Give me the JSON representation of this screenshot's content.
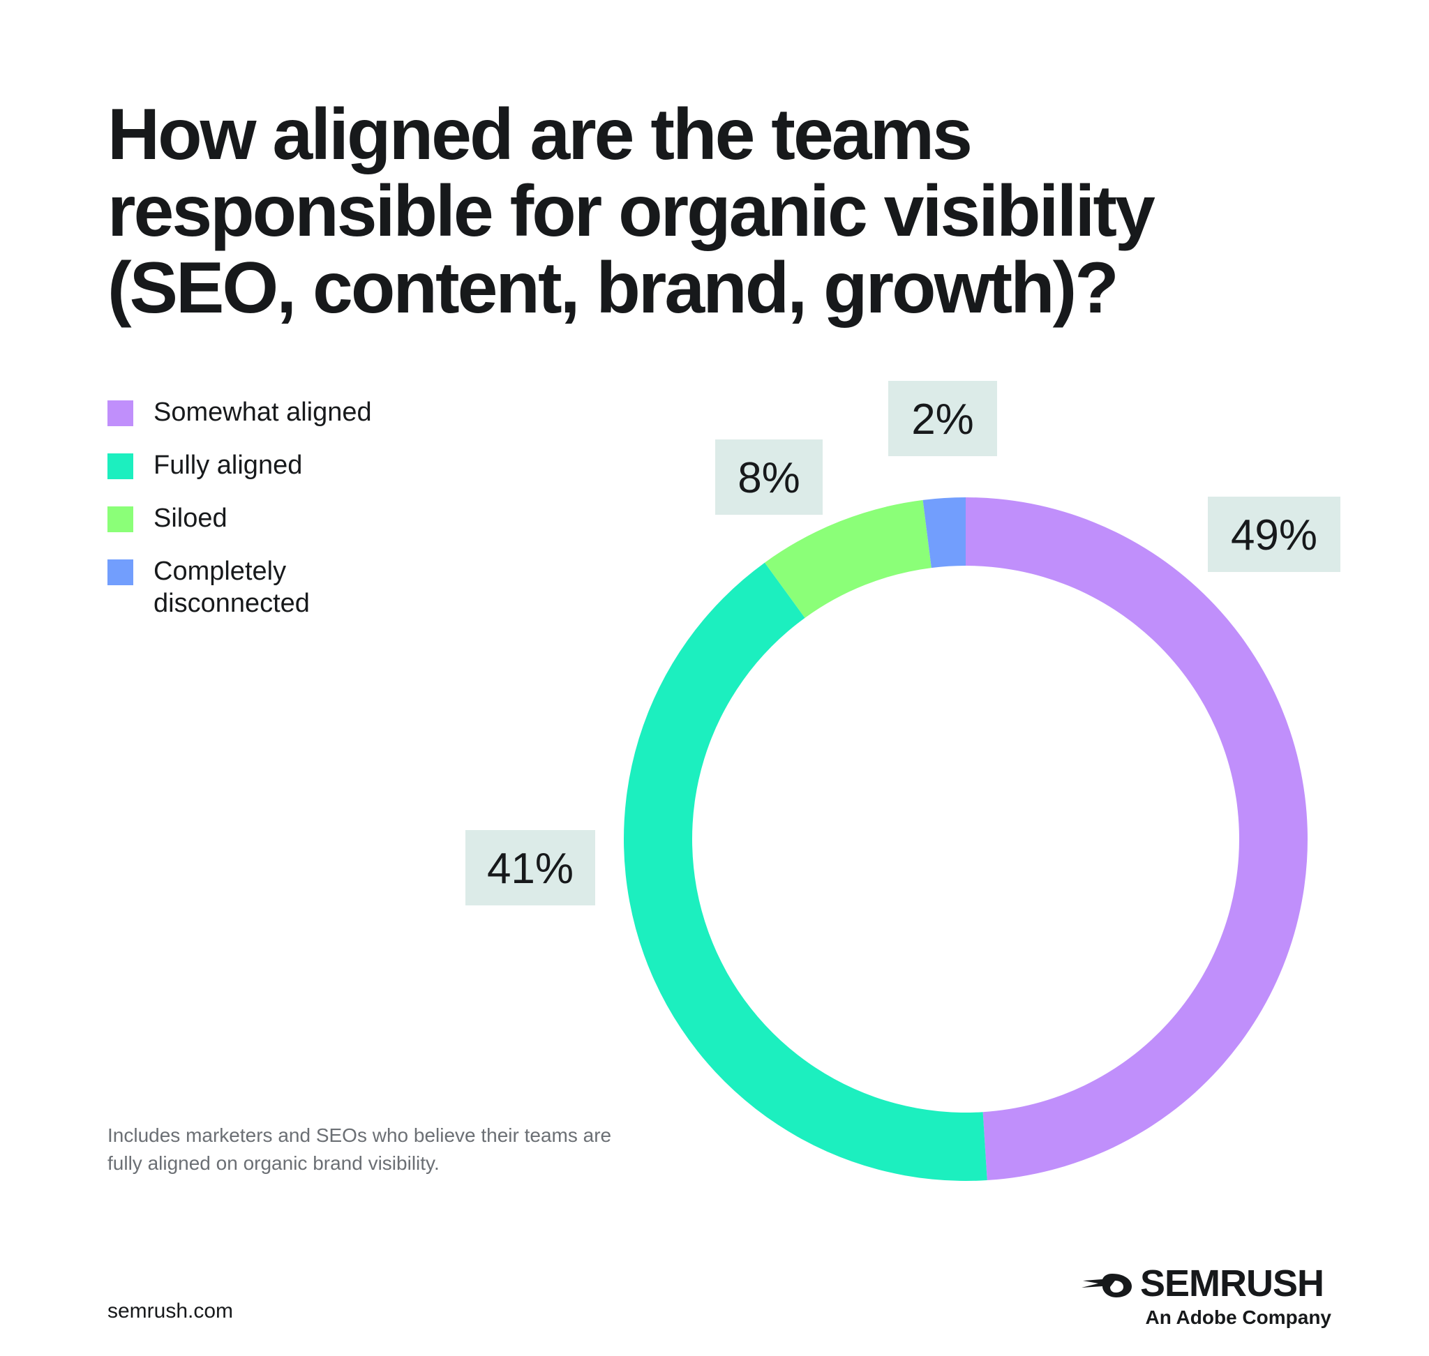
{
  "title": "How aligned are the teams responsible for organic visibility (SEO, content, brand, growth)?",
  "chart_data": {
    "type": "pie",
    "donut": true,
    "categories": [
      "Somewhat aligned",
      "Fully aligned",
      "Siloed",
      "Completely disconnected"
    ],
    "values": [
      49,
      41,
      8,
      2
    ],
    "labels": [
      "49%",
      "41%",
      "8%",
      "2%"
    ],
    "colors": [
      "#c08ffb",
      "#1cefbf",
      "#8bff78",
      "#729efd"
    ],
    "legend_position": "top-left",
    "label_background": "#dcebe8"
  },
  "footnote": "Includes marketers and SEOs who believe their teams are fully aligned on organic brand visibility.",
  "site": "semrush.com",
  "brand": {
    "name": "SEMRUSH",
    "tagline": "An Adobe Company",
    "icon": "semrush-fireball-icon"
  }
}
